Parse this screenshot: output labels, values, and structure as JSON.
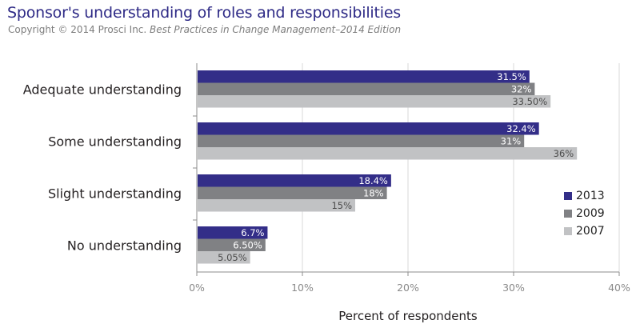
{
  "header": {
    "title": "Sponsor's understanding of roles and responsibilities",
    "copyright": "Copyright © 2014 Prosci Inc.",
    "source_italic": "Best Practices in Change Management–2014 Edition"
  },
  "colors": {
    "2013": "#332e88",
    "2009": "#808184",
    "2007": "#c1c2c4",
    "title": "#2e2a86"
  },
  "chart_data": {
    "type": "bar",
    "orientation": "horizontal",
    "title": "Sponsor's understanding of roles and responsibilities",
    "xlabel": "Percent of respondents",
    "ylabel": "",
    "xlim": [
      0,
      40
    ],
    "xticks": [
      "0%",
      "10%",
      "20%",
      "30%",
      "40%"
    ],
    "grid": true,
    "legend_position": "right",
    "categories": [
      "Adequate understanding",
      "Some understanding",
      "Slight understanding",
      "No understanding"
    ],
    "series": [
      {
        "name": "2013",
        "values": [
          31.5,
          32.4,
          18.4,
          6.7
        ],
        "labels": [
          "31.5%",
          "32.4%",
          "18.4%",
          "6.7%"
        ]
      },
      {
        "name": "2009",
        "values": [
          32,
          31,
          18,
          6.5
        ],
        "labels": [
          "32%",
          "31%",
          "18%",
          "6.50%"
        ]
      },
      {
        "name": "2007",
        "values": [
          33.5,
          36,
          15,
          5.05
        ],
        "labels": [
          "33.50%",
          "36%",
          "15%",
          "5.05%"
        ]
      }
    ]
  }
}
